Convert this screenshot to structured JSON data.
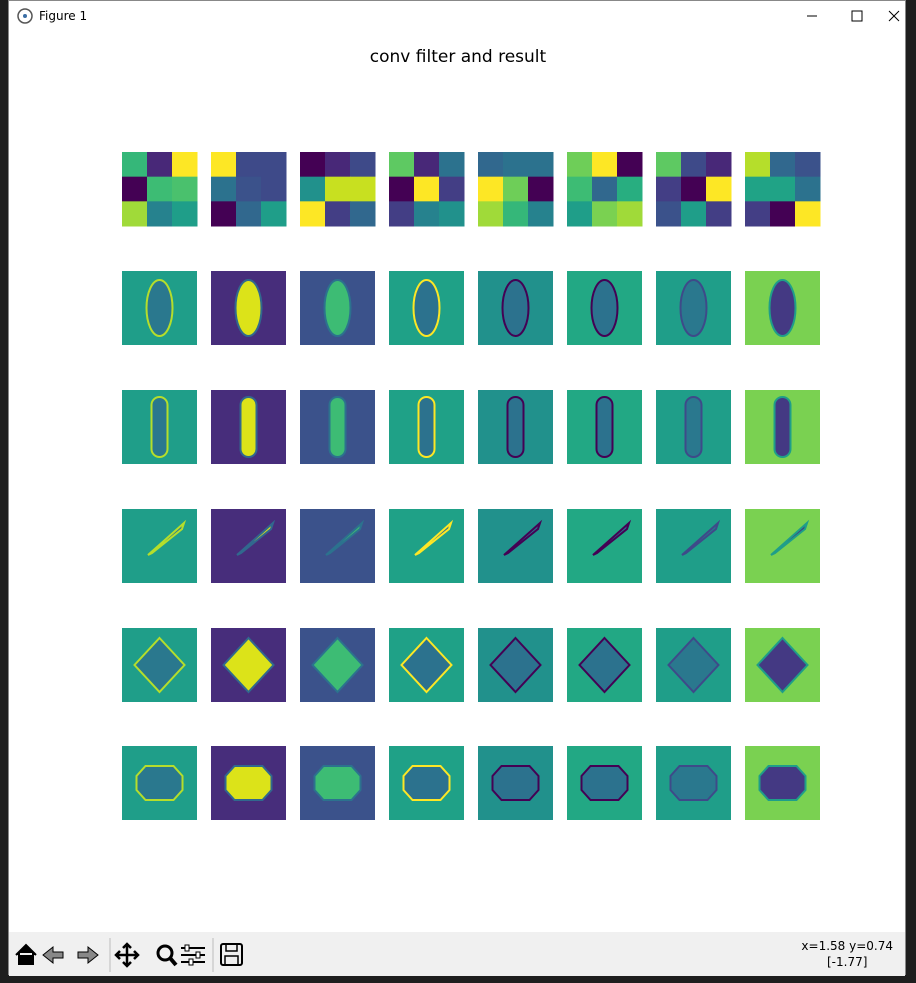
{
  "window": {
    "title": "Figure 1"
  },
  "figure": {
    "title": "conv filter and result"
  },
  "status": {
    "coords": "x=1.58 y=0.74",
    "value": "[-1.77]"
  }
}
